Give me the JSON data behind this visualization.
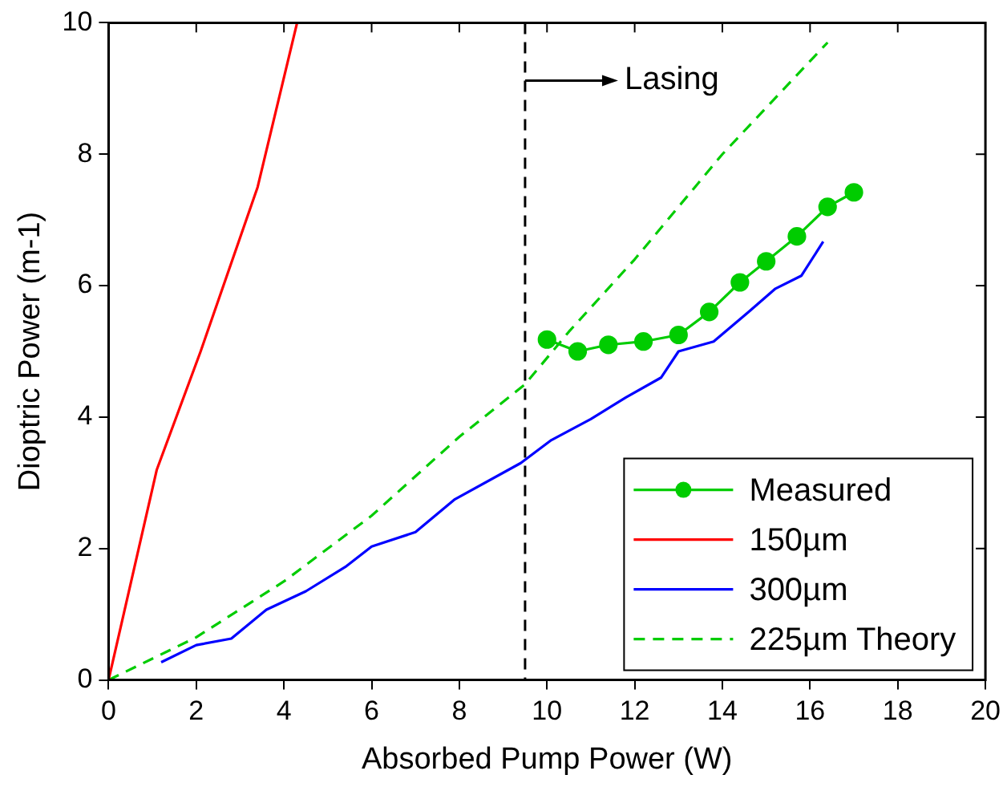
{
  "chart_data": {
    "type": "line",
    "xlabel": "Absorbed Pump Power (W)",
    "ylabel": "Dioptric Power (m-1)",
    "xlim": [
      0,
      20
    ],
    "xticks": [
      0,
      2,
      4,
      6,
      8,
      10,
      12,
      14,
      16,
      18,
      20
    ],
    "ylim": [
      0,
      10
    ],
    "yticks": [
      0,
      2,
      4,
      6,
      8,
      10
    ],
    "grid": false,
    "legend": "bottom right",
    "ref_lines": [
      {
        "axis": "x",
        "value": 9.5,
        "label": "Lasing",
        "color": "#000000",
        "line_style": "dashed"
      }
    ],
    "series": [
      {
        "name": "Measured",
        "color": "#00cc00",
        "marker": "circle",
        "line_style": "solid",
        "x": [
          10.0,
          10.7,
          11.4,
          12.2,
          13.0,
          13.7,
          14.4,
          15.0,
          15.7,
          16.4,
          17.0
        ],
        "values": [
          5.18,
          5.0,
          5.1,
          5.15,
          5.25,
          5.6,
          6.05,
          6.37,
          6.75,
          7.2,
          7.42
        ]
      },
      {
        "name": "150µm",
        "color": "#ff0000",
        "marker": "none",
        "line_style": "solid",
        "x": [
          0,
          1.1,
          2.1,
          3.4,
          4.3
        ],
        "values": [
          0,
          3.2,
          5.0,
          7.5,
          10
        ]
      },
      {
        "name": "300µm",
        "color": "#0000ff",
        "marker": "none",
        "line_style": "solid",
        "x": [
          1.2,
          2.0,
          2.8,
          3.6,
          4.5,
          5.4,
          6.0,
          7.0,
          7.9,
          9.4,
          10.1,
          11.0,
          11.8,
          12.6,
          13.0,
          13.8,
          14.6,
          15.2,
          15.8,
          16.3
        ],
        "values": [
          0.27,
          0.53,
          0.63,
          1.07,
          1.35,
          1.72,
          2.03,
          2.25,
          2.75,
          3.3,
          3.65,
          3.97,
          4.3,
          4.6,
          5.0,
          5.15,
          5.6,
          5.95,
          6.15,
          6.67
        ]
      },
      {
        "name": "225µm Theory",
        "color": "#00cc00",
        "marker": "none",
        "line_style": "dashed",
        "x": [
          0,
          2,
          4,
          6,
          8,
          9.5,
          10.5,
          12,
          14,
          16.4
        ],
        "values": [
          0,
          0.65,
          1.5,
          2.5,
          3.7,
          4.5,
          5.3,
          6.4,
          8.0,
          9.7
        ]
      }
    ]
  }
}
